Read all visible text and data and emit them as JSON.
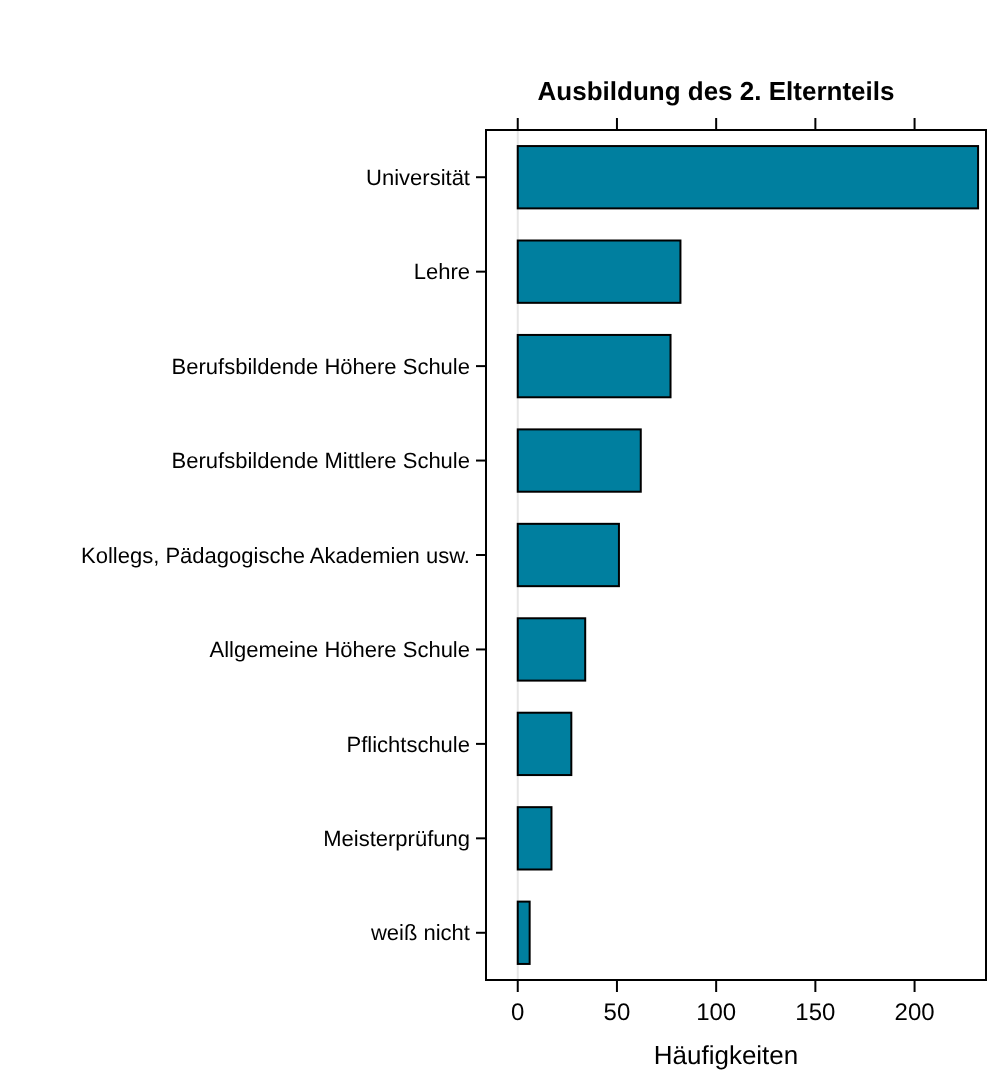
{
  "chart_data": {
    "type": "bar",
    "orientation": "horizontal",
    "title": "Ausbildung des 2. Elternteils",
    "xlabel": "Häufigkeiten",
    "categories": [
      "Universität",
      "Lehre",
      "Berufsbildende Höhere Schule",
      "Berufsbildende Mittlere Schule",
      "Kollegs, Pädagogische Akademien usw.",
      "Allgemeine Höhere Schule",
      "Pflichtschule",
      "Meisterprüfung",
      "weiß nicht"
    ],
    "values": [
      232,
      82,
      77,
      62,
      51,
      34,
      27,
      17,
      6
    ],
    "color": "#007f9f",
    "xlim": [
      -16,
      236
    ],
    "xticks": [
      0,
      50,
      100,
      150,
      200
    ],
    "ref_lines": [
      {
        "axis": "x",
        "value": 0,
        "color": "#e6e6e6"
      }
    ]
  }
}
